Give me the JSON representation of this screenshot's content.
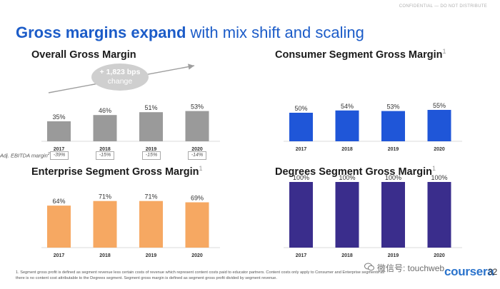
{
  "header": {
    "confidential": "CONFIDENTIAL — DO NOT DISTRIBUTE",
    "title_bold": "Gross margins expand",
    "title_rest": " with mix shift and scaling"
  },
  "callout": {
    "line1": "+ 1,823 bps",
    "line2": "change"
  },
  "ebitda": {
    "label": "Adj. EBITDA margin",
    "footnote_mark": "2",
    "values": [
      "-39%",
      "-15%",
      "-15%",
      "-14%"
    ]
  },
  "chart_data": [
    {
      "type": "bar",
      "title": "Overall Gross Margin",
      "title_sup": "",
      "categories": [
        "2017",
        "2018",
        "2019",
        "2020"
      ],
      "values": [
        35,
        46,
        51,
        53
      ],
      "labels": [
        "35%",
        "46%",
        "51%",
        "53%"
      ],
      "ylim": [
        0,
        100
      ],
      "color": "#9a9a9a"
    },
    {
      "type": "bar",
      "title": "Consumer Segment Gross Margin",
      "title_sup": "1",
      "categories": [
        "2017",
        "2018",
        "2019",
        "2020"
      ],
      "values": [
        50,
        54,
        53,
        55
      ],
      "labels": [
        "50%",
        "54%",
        "53%",
        "55%"
      ],
      "ylim": [
        0,
        100
      ],
      "color": "#1f56d8"
    },
    {
      "type": "bar",
      "title": "Enterprise Segment Gross Margin",
      "title_sup": "1",
      "categories": [
        "2017",
        "2018",
        "2019",
        "2020"
      ],
      "values": [
        64,
        71,
        71,
        69
      ],
      "labels": [
        "64%",
        "71%",
        "71%",
        "69%"
      ],
      "ylim": [
        0,
        100
      ],
      "color": "#f6a862"
    },
    {
      "type": "bar",
      "title": "Degrees Segment Gross Margin",
      "title_sup": "1",
      "categories": [
        "2017",
        "2018",
        "2019",
        "2020"
      ],
      "values": [
        100,
        100,
        100,
        100
      ],
      "labels": [
        "100%",
        "100%",
        "100%",
        "100%"
      ],
      "ylim": [
        0,
        100
      ],
      "color": "#3a2d8c"
    }
  ],
  "footnote": "1. Segment gross profit is defined as segment revenue less certain costs of revenue which represent content costs paid to educator partners. Content costs only apply to Consumer and Enterprise segments as there is no content cost attributable to the Degrees segment. Segment gross margin is defined as segment gross profit divided by segment revenue.",
  "logo": "coursera",
  "page_number": "32",
  "watermark": "微信号: touchweb"
}
